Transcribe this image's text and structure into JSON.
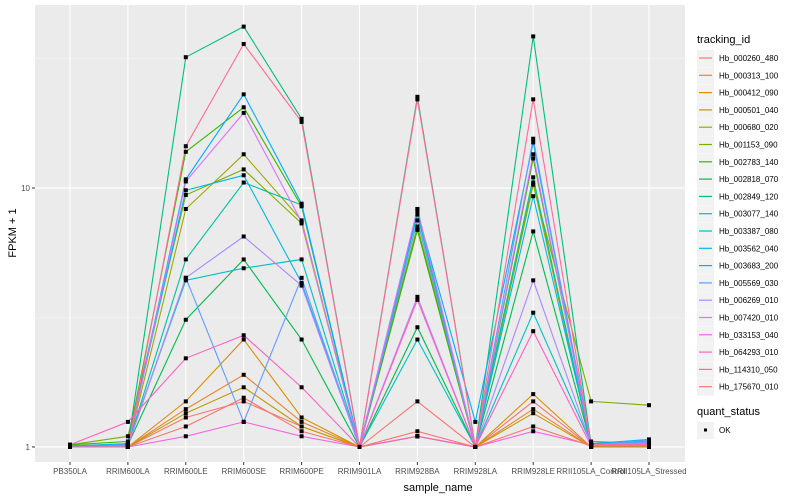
{
  "chart_data": {
    "type": "line",
    "xlabel": "sample_name",
    "ylabel": "FPKM + 1",
    "yscale": "log10",
    "ylim": [
      0.875,
      50.9
    ],
    "y_ticks": [
      1,
      10
    ],
    "y_tick_labels": [
      "1",
      "10"
    ],
    "grid": true,
    "legend_position": "right",
    "categories": [
      "PB350LA",
      "RRIM600LA",
      "RRIM600LE",
      "RRIM600SE",
      "RRIM600PE",
      "RRIM901LA",
      "RRIM928BA",
      "RRIM928LA",
      "RRIM928LE",
      "RRII105LA_Control",
      "RRII105LA_Stressed"
    ],
    "legend_title": "tracking_id",
    "series": [
      {
        "name": "Hb_000260_480",
        "color": "#F8766D",
        "values": [
          1.0,
          1.0,
          1.3,
          1.5,
          1.2,
          1.0,
          1.5,
          1.0,
          1.5,
          1.0,
          1.0
        ]
      },
      {
        "name": "Hb_000313_100",
        "color": "#EA8331",
        "values": [
          1.0,
          1.0,
          1.4,
          1.9,
          1.25,
          1.0,
          1.1,
          1.0,
          1.4,
          1.0,
          1.0
        ]
      },
      {
        "name": "Hb_000412_090",
        "color": "#D89000",
        "values": [
          1.0,
          1.0,
          1.5,
          2.6,
          1.3,
          1.0,
          1.1,
          1.0,
          1.6,
          1.0,
          1.0
        ]
      },
      {
        "name": "Hb_000501_040",
        "color": "#C09B00",
        "values": [
          1.0,
          1.0,
          1.35,
          1.7,
          1.2,
          1.0,
          1.1,
          1.0,
          1.35,
          1.0,
          1.0
        ]
      },
      {
        "name": "Hb_000680_020",
        "color": "#A3A500",
        "values": [
          1.0,
          1.0,
          8.3,
          13.5,
          7.5,
          1.0,
          6.9,
          1.0,
          10.5,
          1.0,
          1.0
        ]
      },
      {
        "name": "Hb_001153_090",
        "color": "#7CAE00",
        "values": [
          1.02,
          1.1,
          9.4,
          11.8,
          7.3,
          1.0,
          7.1,
          1.0,
          10.3,
          1.5,
          1.45
        ]
      },
      {
        "name": "Hb_002783_140",
        "color": "#39B600",
        "values": [
          1.02,
          1.05,
          13.8,
          20.5,
          8.5,
          1.0,
          6.9,
          1.0,
          13.0,
          1.05,
          1.03
        ]
      },
      {
        "name": "Hb_002818_070",
        "color": "#00BB4E",
        "values": [
          1.01,
          1.02,
          3.1,
          5.3,
          2.6,
          1.0,
          2.9,
          1.0,
          6.8,
          1.02,
          1.02
        ]
      },
      {
        "name": "Hb_002849_120",
        "color": "#00BF7D",
        "values": [
          1.01,
          1.02,
          32.0,
          42.0,
          18.5,
          1.0,
          22.5,
          1.0,
          38.5,
          1.02,
          1.02
        ]
      },
      {
        "name": "Hb_003077_140",
        "color": "#00C1A3",
        "values": [
          1.01,
          1.02,
          5.3,
          10.5,
          8.6,
          1.0,
          7.9,
          1.0,
          11.0,
          1.02,
          1.03
        ]
      },
      {
        "name": "Hb_003387_080",
        "color": "#00BFC4",
        "values": [
          1.01,
          1.03,
          4.4,
          4.9,
          5.3,
          1.0,
          2.6,
          1.0,
          3.3,
          1.03,
          1.04
        ]
      },
      {
        "name": "Hb_003562_040",
        "color": "#00B9E3",
        "values": [
          1.0,
          1.03,
          9.8,
          11.2,
          4.3,
          1.0,
          8.3,
          1.0,
          9.3,
          1.03,
          1.05
        ]
      },
      {
        "name": "Hb_003683_200",
        "color": "#00ADFA",
        "values": [
          1.0,
          1.02,
          10.8,
          23.0,
          8.7,
          1.0,
          8.1,
          1.25,
          15.0,
          1.03,
          1.07
        ]
      },
      {
        "name": "Hb_005569_030",
        "color": "#619CFF",
        "values": [
          1.0,
          1.02,
          4.5,
          1.25,
          4.5,
          1.0,
          7.5,
          1.0,
          15.5,
          1.02,
          1.06
        ]
      },
      {
        "name": "Hb_006269_010",
        "color": "#AE87FF",
        "values": [
          1.0,
          1.01,
          4.5,
          6.5,
          4.2,
          1.0,
          3.8,
          1.0,
          4.4,
          1.02,
          1.04
        ]
      },
      {
        "name": "Hb_007420_010",
        "color": "#DB72FB",
        "values": [
          1.0,
          1.0,
          10.6,
          19.5,
          7.4,
          1.0,
          8.3,
          1.0,
          13.5,
          1.02,
          1.03
        ]
      },
      {
        "name": "Hb_033153_040",
        "color": "#F564E3",
        "values": [
          1.0,
          1.0,
          1.1,
          1.25,
          1.1,
          1.0,
          1.1,
          1.0,
          1.15,
          1.02,
          1.02
        ]
      },
      {
        "name": "Hb_064293_010",
        "color": "#FF61C3",
        "values": [
          1.02,
          1.25,
          2.2,
          2.7,
          1.7,
          1.0,
          3.7,
          1.0,
          2.8,
          1.01,
          1.02
        ]
      },
      {
        "name": "Hb_114310_050",
        "color": "#FF6C91",
        "values": [
          1.0,
          1.0,
          14.5,
          36.0,
          18.0,
          1.0,
          22.0,
          1.0,
          22.0,
          1.02,
          1.02
        ]
      },
      {
        "name": "Hb_175670_010",
        "color": "#F8766D",
        "values": [
          1.0,
          1.0,
          1.2,
          1.55,
          1.15,
          1.0,
          1.15,
          1.0,
          1.2,
          1.01,
          1.01
        ]
      }
    ],
    "shape_legend_title": "quant_status",
    "shape_legend_items": [
      "OK"
    ]
  }
}
